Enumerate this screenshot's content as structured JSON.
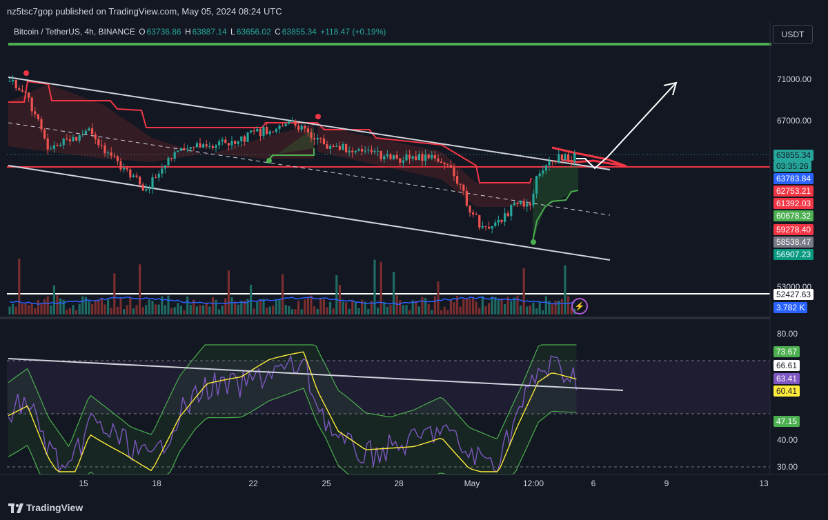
{
  "header": {
    "published": "nz5tsc7gop published on TradingView.com, May 05, 2024 08:24 UTC"
  },
  "legend": {
    "symbol": "Bitcoin / TetherUS, 4h, BINANCE",
    "o_label": "O",
    "o_val": "63736.86",
    "h_label": "H",
    "h_val": "63887.14",
    "l_label": "L",
    "l_val": "63656.02",
    "c_label": "C",
    "c_val": "63855.34",
    "change": "+118.47 (+0.19%)"
  },
  "currency_button": "USDT",
  "price_axis": {
    "labels": [
      "71000.00",
      "67000.00",
      "53000.00"
    ],
    "tags": [
      {
        "text": "63855.34",
        "bg": "#26a69a",
        "fg": "#131722"
      },
      {
        "text": "03:35:26",
        "bg": "#26a69a",
        "fg": "#131722"
      },
      {
        "text": "63783.84",
        "bg": "#2962ff",
        "fg": "#ffffff"
      },
      {
        "text": "62753.21",
        "bg": "#f23645",
        "fg": "#ffffff"
      },
      {
        "text": "61392.03",
        "bg": "#f23645",
        "fg": "#ffffff"
      },
      {
        "text": "60678.32",
        "bg": "#4caf50",
        "fg": "#ffffff"
      },
      {
        "text": "59278.40",
        "bg": "#f23645",
        "fg": "#ffffff"
      },
      {
        "text": "58538.47",
        "bg": "#787b86",
        "fg": "#ffffff"
      },
      {
        "text": "56907.23",
        "bg": "#089981",
        "fg": "#ffffff"
      },
      {
        "text": "52427.63",
        "bg": "#ffffff",
        "fg": "#131722"
      },
      {
        "text": "3.782 K",
        "bg": "#2962ff",
        "fg": "#ffffff"
      }
    ]
  },
  "rsi_axis": {
    "labels": [
      "80.00",
      "40.00",
      "30.00"
    ],
    "tags": [
      {
        "text": "73.67",
        "bg": "#4caf50",
        "fg": "#ffffff"
      },
      {
        "text": "66.61",
        "bg": "#ffffff",
        "fg": "#131722"
      },
      {
        "text": "63.41",
        "bg": "#7e57c2",
        "fg": "#ffffff"
      },
      {
        "text": "60.41",
        "bg": "#ffeb3b",
        "fg": "#131722"
      },
      {
        "text": "47.15",
        "bg": "#4caf50",
        "fg": "#ffffff"
      }
    ]
  },
  "time_axis": [
    "15",
    "18",
    "22",
    "25",
    "28",
    "May",
    "12:00",
    "6",
    "9",
    "13"
  ],
  "footer": {
    "brand": "TradingView"
  },
  "colors": {
    "bg": "#131722",
    "up": "#26a69a",
    "down": "#ef5350",
    "trend_red": "#f23645",
    "trend_green": "#4caf50",
    "channel": "#d1d4dc"
  }
}
